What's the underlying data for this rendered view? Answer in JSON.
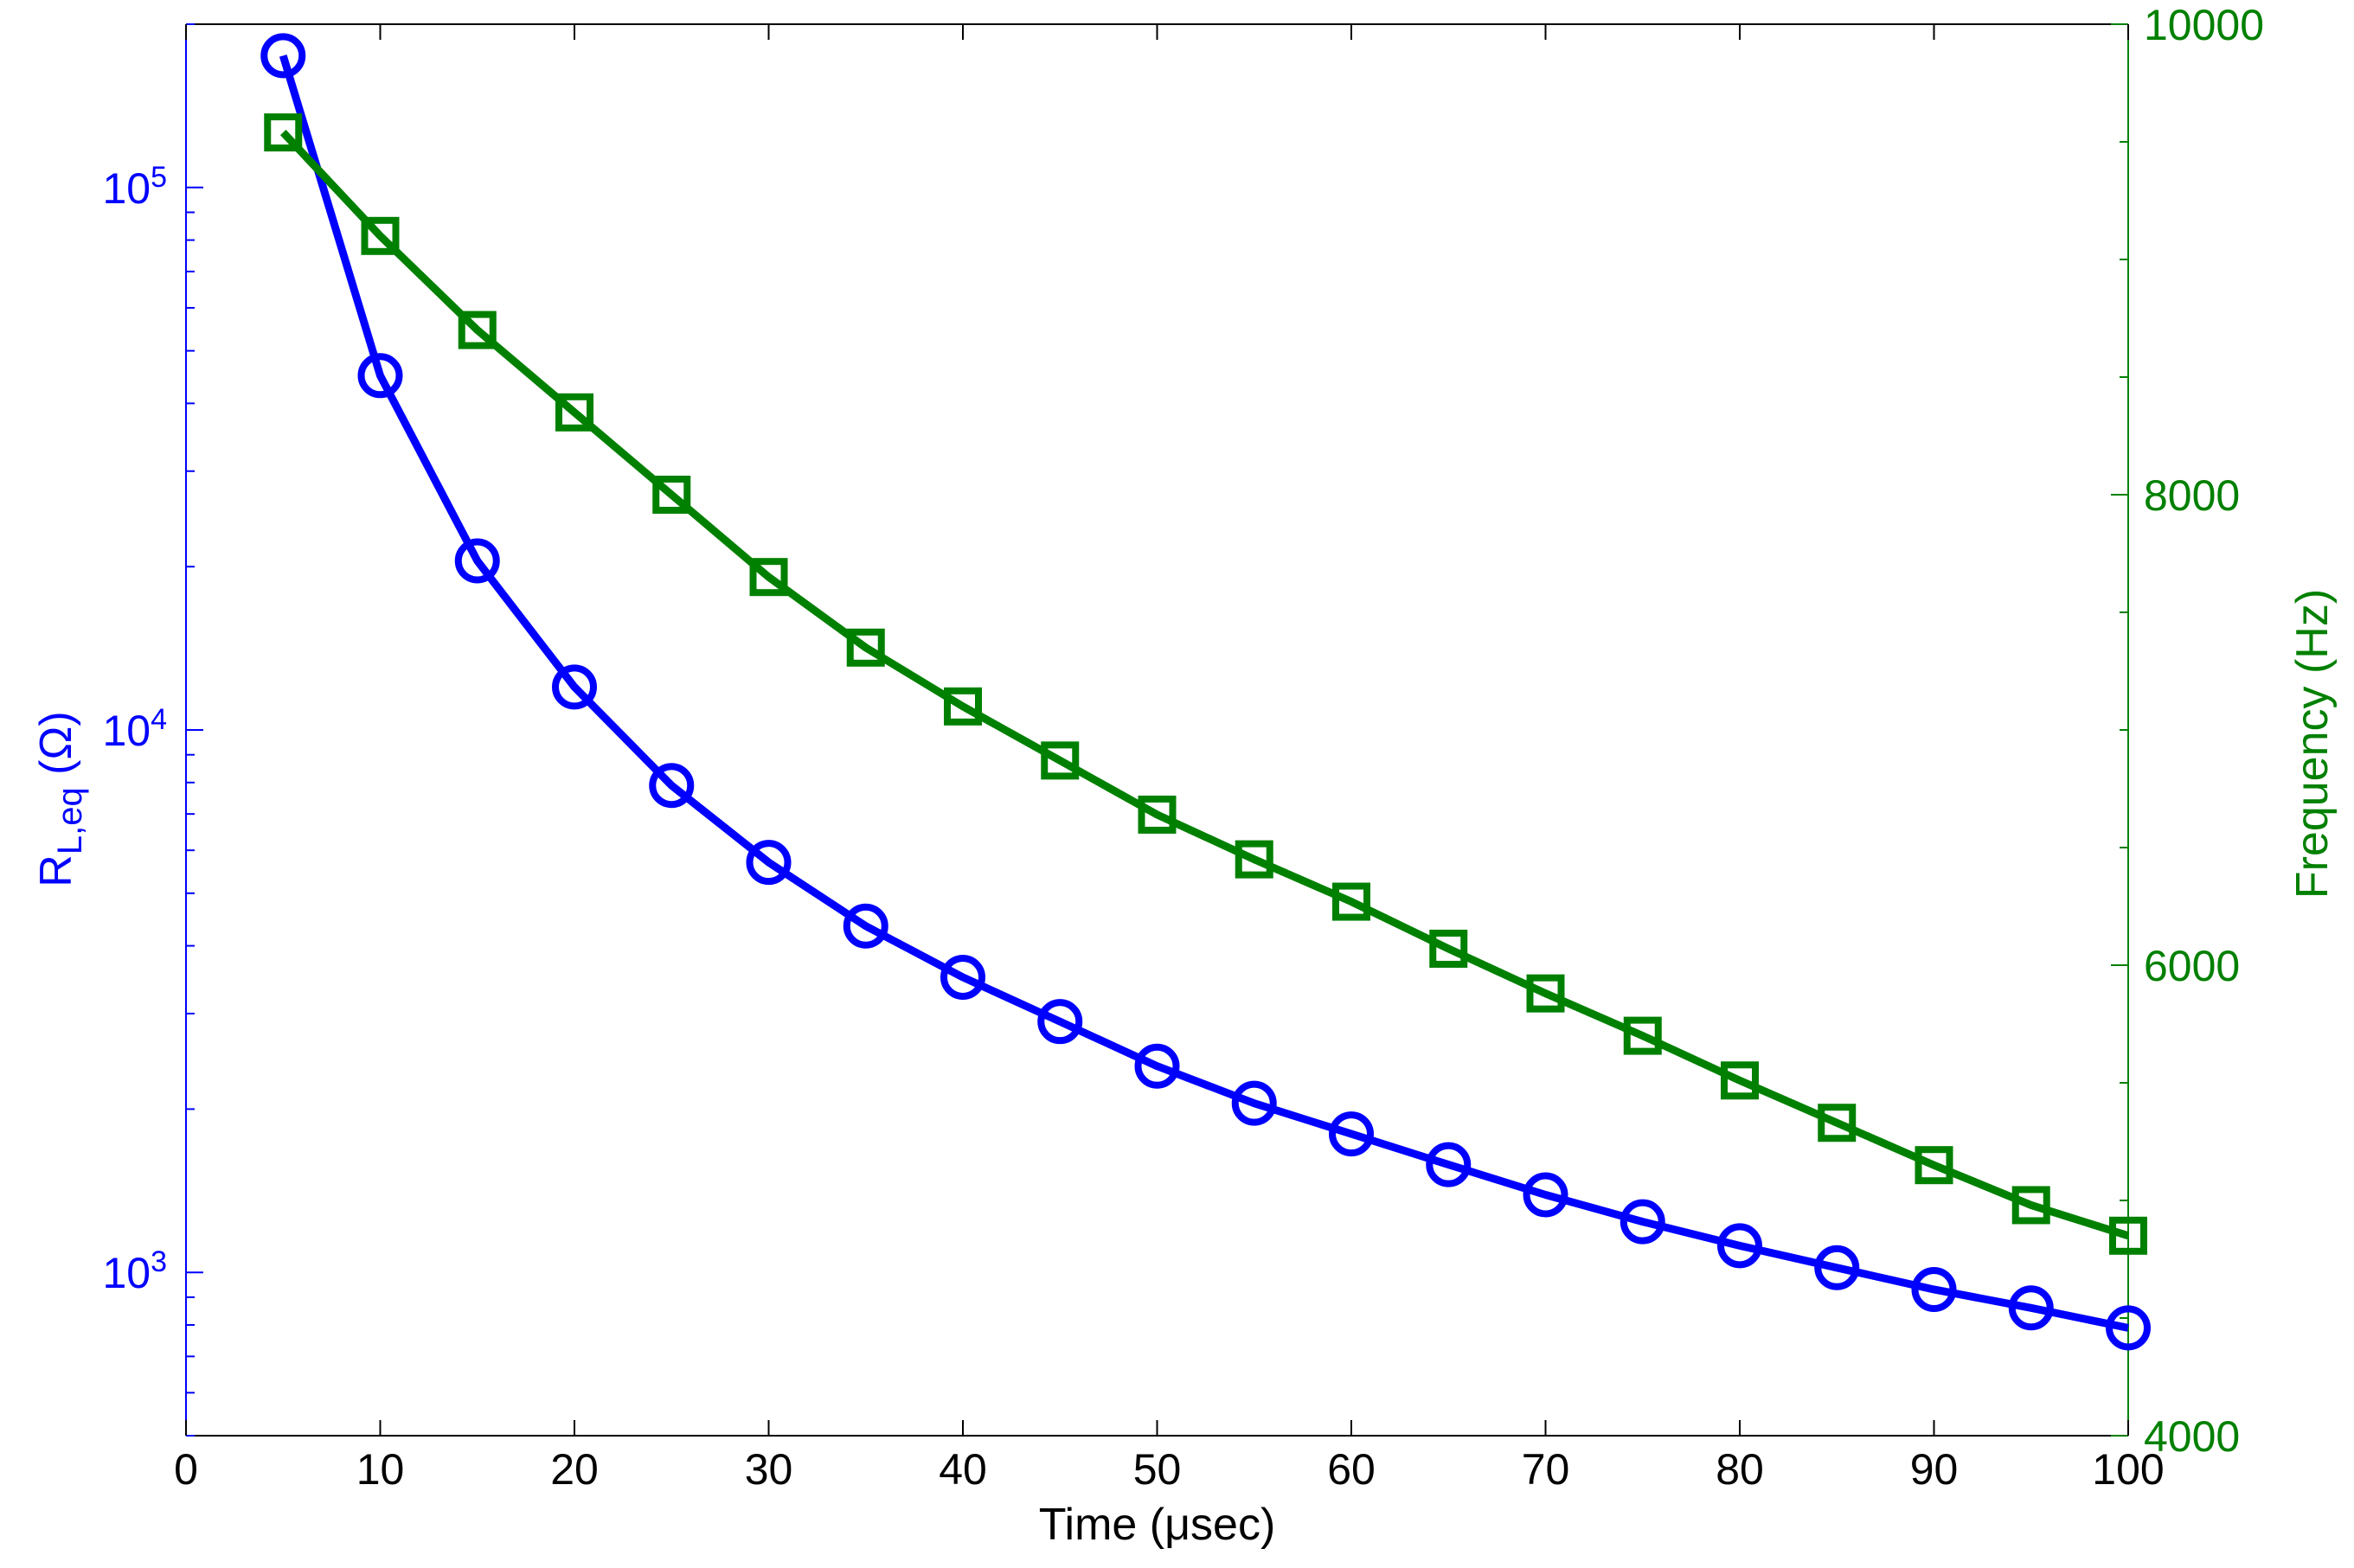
{
  "chart_data": {
    "type": "line",
    "title": "",
    "x": [
      5,
      10,
      15,
      20,
      25,
      30,
      35,
      40,
      45,
      50,
      55,
      60,
      65,
      70,
      75,
      80,
      85,
      90,
      95,
      100
    ],
    "xlabel": {
      "pre": "Time (",
      "mu": "μ",
      "post": "sec)"
    },
    "xlim": [
      0,
      100
    ],
    "xticks": [
      "0",
      "10",
      "20",
      "30",
      "40",
      "50",
      "60",
      "70",
      "80",
      "90",
      "100"
    ],
    "grid": false,
    "legend": "none",
    "left_axis": {
      "scale": "log",
      "ylim": [
        500,
        200000
      ],
      "ylabel": {
        "base": "R",
        "sub": "L,eq",
        "unit": " (Ω)"
      },
      "ticks": [
        {
          "value": 1000,
          "base": "10",
          "exp": "3"
        },
        {
          "value": 10000,
          "base": "10",
          "exp": "4"
        },
        {
          "value": 100000,
          "base": "10",
          "exp": "5"
        }
      ],
      "color": "#0000ff"
    },
    "right_axis": {
      "scale": "linear",
      "ylim": [
        4000,
        10000
      ],
      "ylabel": "Frequency (Hz)",
      "ticks": [
        "4000",
        "6000",
        "8000",
        "10000"
      ],
      "color": "#008000"
    },
    "series": [
      {
        "axis": "left",
        "marker": "circle",
        "color": "#0000ff",
        "values": [
          175000,
          45000,
          20500,
          12000,
          7900,
          5700,
          4350,
          3500,
          2900,
          2400,
          2050,
          1800,
          1580,
          1390,
          1240,
          1120,
          1020,
          930,
          860,
          790
        ]
      },
      {
        "axis": "right",
        "marker": "square",
        "color": "#008000",
        "values": [
          9540,
          9100,
          8700,
          8350,
          8000,
          7650,
          7350,
          7100,
          6870,
          6640,
          6450,
          6270,
          6070,
          5880,
          5700,
          5510,
          5330,
          5150,
          4980,
          4850
        ]
      }
    ]
  }
}
